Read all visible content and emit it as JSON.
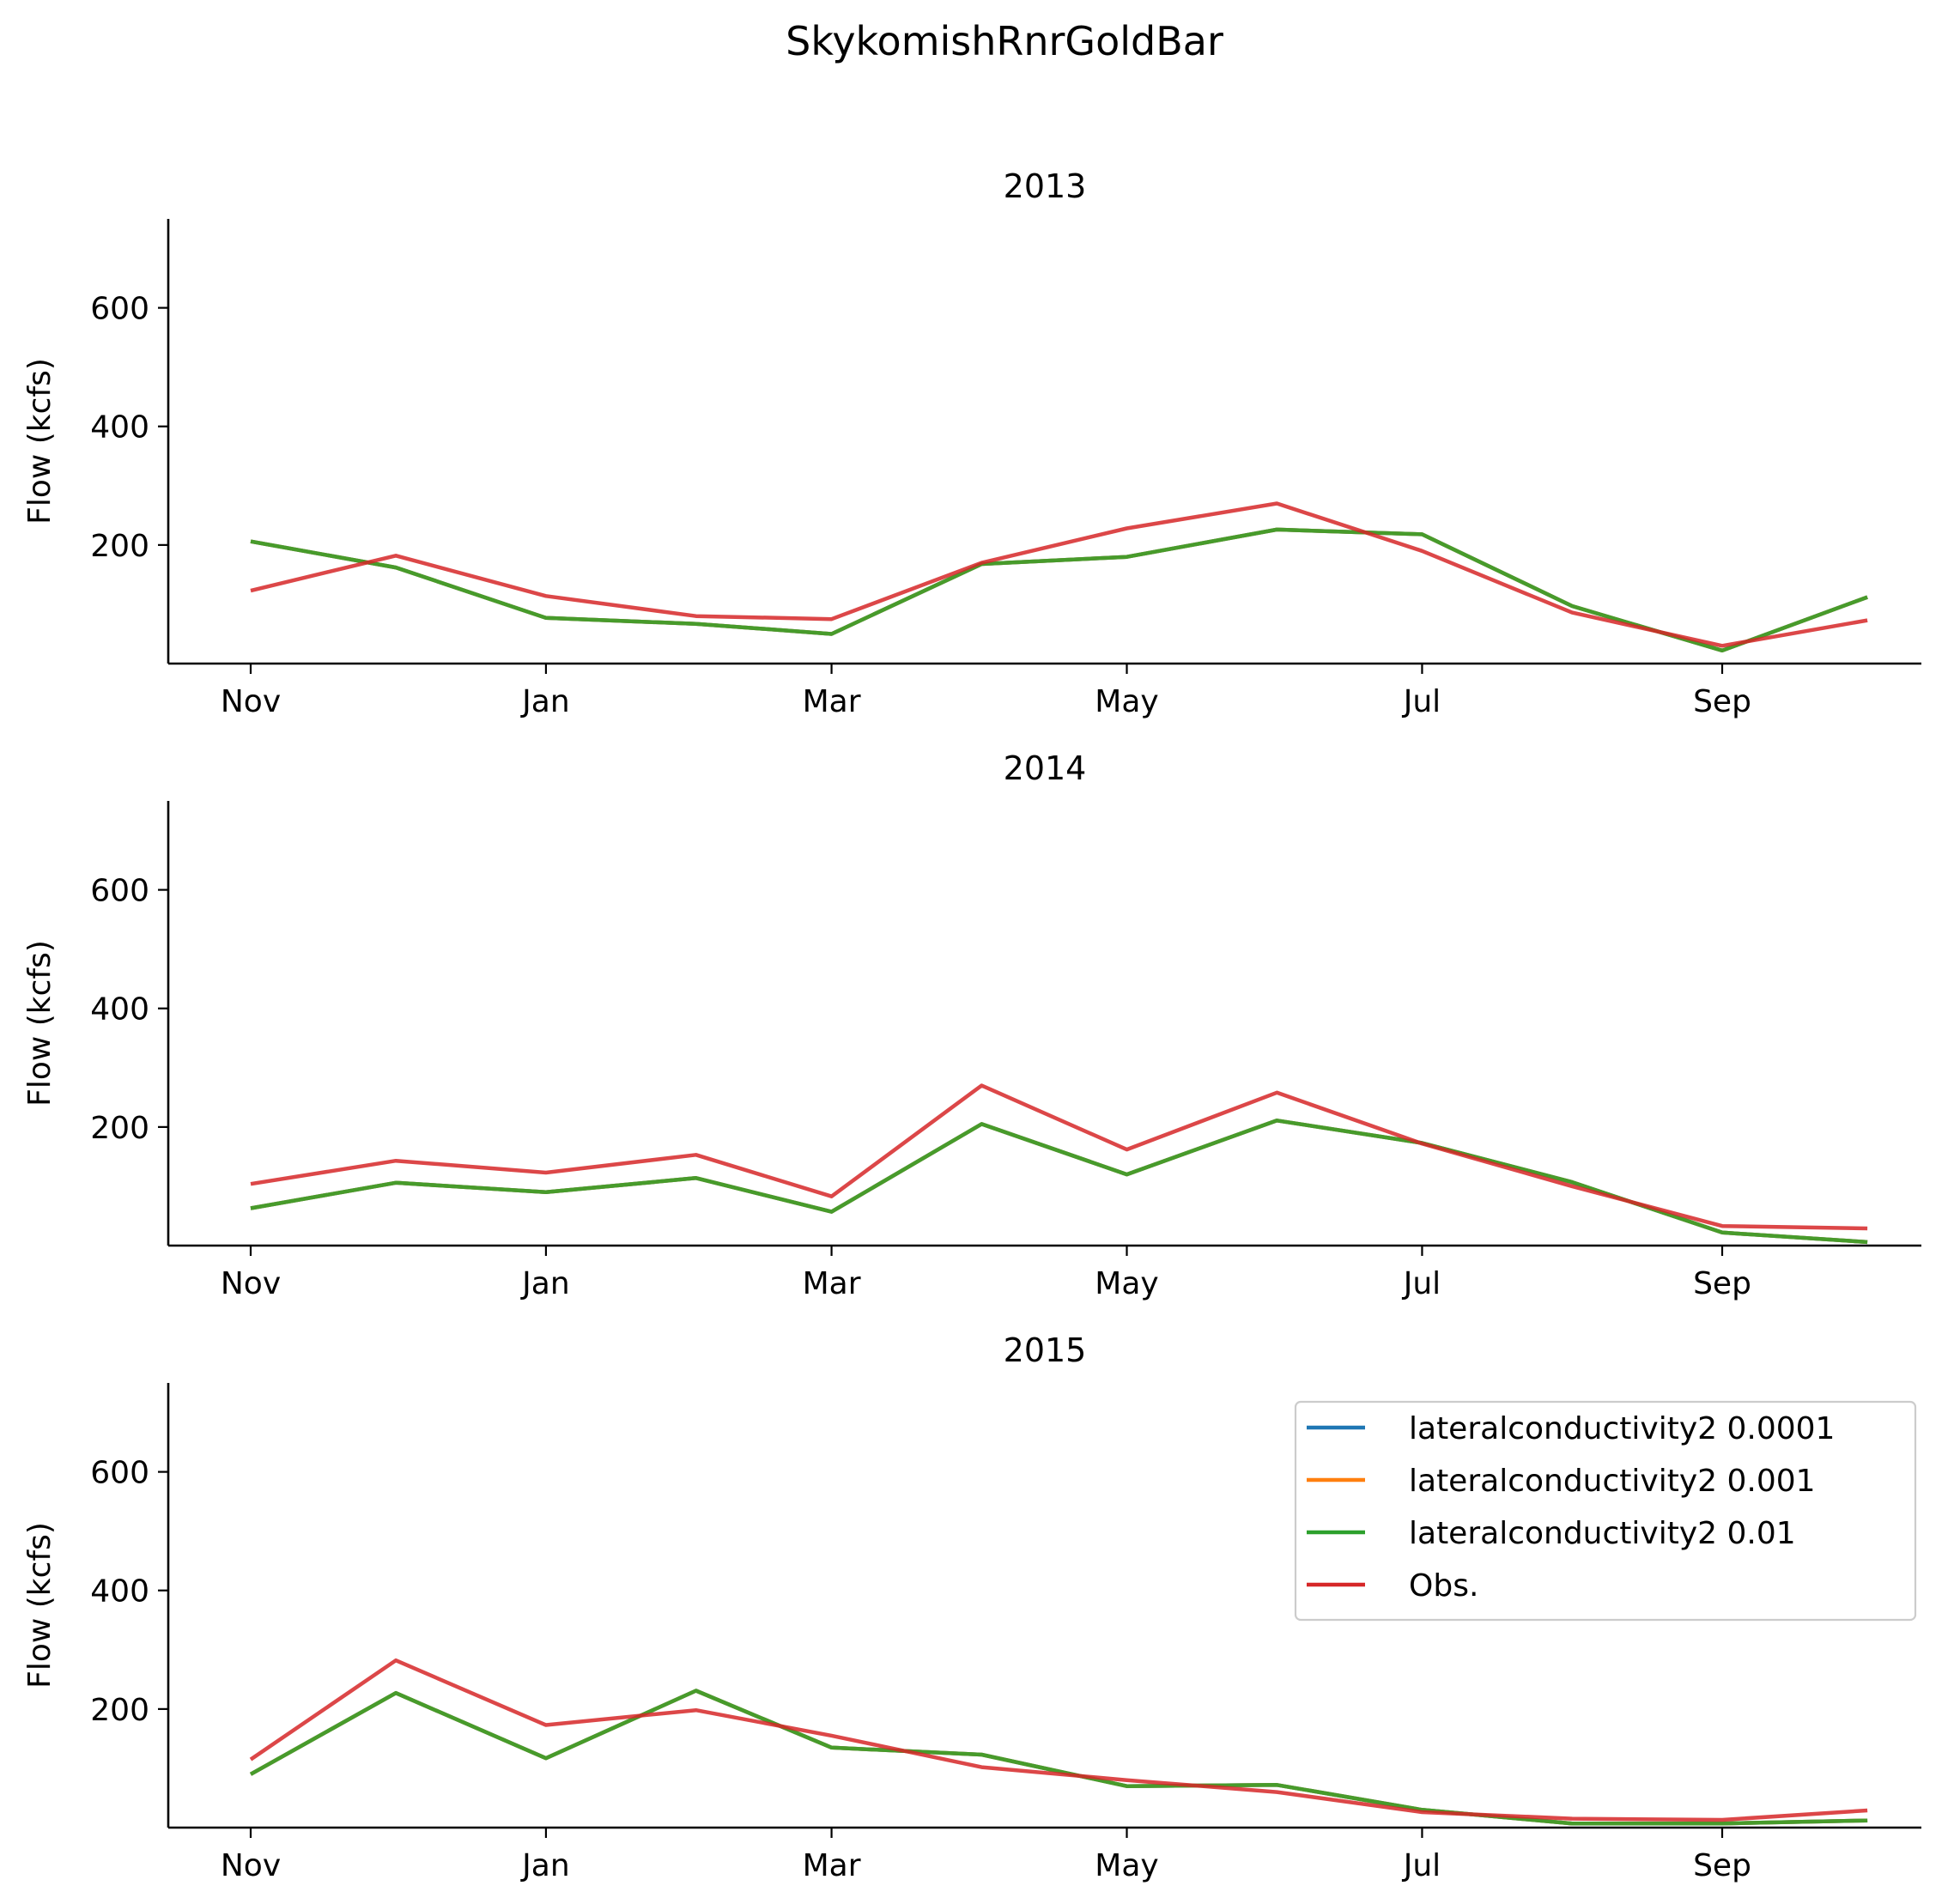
{
  "figure": {
    "suptitle": "SkykomishRnrGoldBar"
  },
  "colors": {
    "lateralconductivity2 0.0001": "#1f77b4",
    "lateralconductivity2 0.001": "#ff7f0e",
    "lateralconductivity2 0.01": "#2ca02c",
    "Obs.": "#d62728"
  },
  "chart_data": [
    {
      "type": "line",
      "title": "2013",
      "xlabel": "",
      "ylabel": "Flow (kcfs)",
      "x": [
        "2012-11-01",
        "2012-12-01",
        "2013-01-01",
        "2013-02-01",
        "2013-03-01",
        "2013-04-01",
        "2013-05-01",
        "2013-06-01",
        "2013-07-01",
        "2013-08-01",
        "2013-09-01",
        "2013-10-01"
      ],
      "xticks": [
        "2012-11-01",
        "2013-01-01",
        "2013-03-01",
        "2013-05-01",
        "2013-07-01",
        "2013-09-01"
      ],
      "xticklabels": [
        "Nov",
        "Jan",
        "Mar",
        "May",
        "Jul",
        "Sep"
      ],
      "yticks": [
        200,
        400,
        600
      ],
      "ylim": [
        0,
        750
      ],
      "series": [
        {
          "name": "lateralconductivity2 0.0001",
          "values": [
            206,
            162,
            77,
            67,
            50,
            168,
            180,
            226,
            218,
            97,
            22,
            112
          ]
        },
        {
          "name": "lateralconductivity2 0.001",
          "values": [
            206,
            162,
            77,
            67,
            50,
            168,
            180,
            226,
            218,
            97,
            22,
            112
          ]
        },
        {
          "name": "lateralconductivity2 0.01",
          "values": [
            206,
            162,
            77,
            67,
            50,
            168,
            180,
            226,
            218,
            97,
            22,
            112
          ]
        },
        {
          "name": "Obs.",
          "values": [
            123,
            182,
            114,
            80,
            75,
            170,
            228,
            270,
            190,
            86,
            30,
            73
          ]
        }
      ],
      "legend": false,
      "grid": false
    },
    {
      "type": "line",
      "title": "2014",
      "xlabel": "",
      "ylabel": "Flow (kcfs)",
      "x": [
        "2013-11-01",
        "2013-12-01",
        "2014-01-01",
        "2014-02-01",
        "2014-03-01",
        "2014-04-01",
        "2014-05-01",
        "2014-06-01",
        "2014-07-01",
        "2014-08-01",
        "2014-09-01",
        "2014-10-01"
      ],
      "xticks": [
        "2013-11-01",
        "2014-01-01",
        "2014-03-01",
        "2014-05-01",
        "2014-07-01",
        "2014-09-01"
      ],
      "xticklabels": [
        "Nov",
        "Jan",
        "Mar",
        "May",
        "Jul",
        "Sep"
      ],
      "yticks": [
        200,
        400,
        600
      ],
      "ylim": [
        0,
        750
      ],
      "series": [
        {
          "name": "lateralconductivity2 0.0001",
          "values": [
            63,
            106,
            90,
            114,
            57,
            205,
            120,
            211,
            173,
            107,
            22,
            6
          ]
        },
        {
          "name": "lateralconductivity2 0.001",
          "values": [
            63,
            106,
            90,
            114,
            57,
            205,
            120,
            211,
            173,
            107,
            22,
            6
          ]
        },
        {
          "name": "lateralconductivity2 0.01",
          "values": [
            63,
            106,
            90,
            114,
            57,
            205,
            120,
            211,
            173,
            107,
            22,
            6
          ]
        },
        {
          "name": "Obs.",
          "values": [
            104,
            143,
            123,
            153,
            83,
            270,
            162,
            258,
            172,
            100,
            33,
            29
          ]
        }
      ],
      "legend": false,
      "grid": false
    },
    {
      "type": "line",
      "title": "2015",
      "xlabel": "",
      "ylabel": "Flow (kcfs)",
      "x": [
        "2014-11-01",
        "2014-12-01",
        "2015-01-01",
        "2015-02-01",
        "2015-03-01",
        "2015-04-01",
        "2015-05-01",
        "2015-06-01",
        "2015-07-01",
        "2015-08-01",
        "2015-09-01",
        "2015-10-01"
      ],
      "xticks": [
        "2014-11-01",
        "2015-01-01",
        "2015-03-01",
        "2015-05-01",
        "2015-07-01",
        "2015-09-01"
      ],
      "xticklabels": [
        "Nov",
        "Jan",
        "Mar",
        "May",
        "Jul",
        "Sep"
      ],
      "yticks": [
        200,
        400,
        600
      ],
      "ylim": [
        0,
        750
      ],
      "series": [
        {
          "name": "lateralconductivity2 0.0001",
          "values": [
            90,
            227,
            117,
            231,
            135,
            123,
            70,
            72,
            30,
            7,
            7,
            12
          ]
        },
        {
          "name": "lateralconductivity2 0.001",
          "values": [
            90,
            227,
            117,
            231,
            135,
            123,
            70,
            72,
            30,
            7,
            7,
            12
          ]
        },
        {
          "name": "lateralconductivity2 0.01",
          "values": [
            90,
            227,
            117,
            231,
            135,
            123,
            70,
            72,
            30,
            7,
            7,
            12
          ]
        },
        {
          "name": "Obs.",
          "values": [
            115,
            282,
            173,
            198,
            155,
            102,
            80,
            60,
            26,
            15,
            13,
            29
          ]
        }
      ],
      "legend": true,
      "legend_loc": "upper right",
      "grid": false
    }
  ]
}
